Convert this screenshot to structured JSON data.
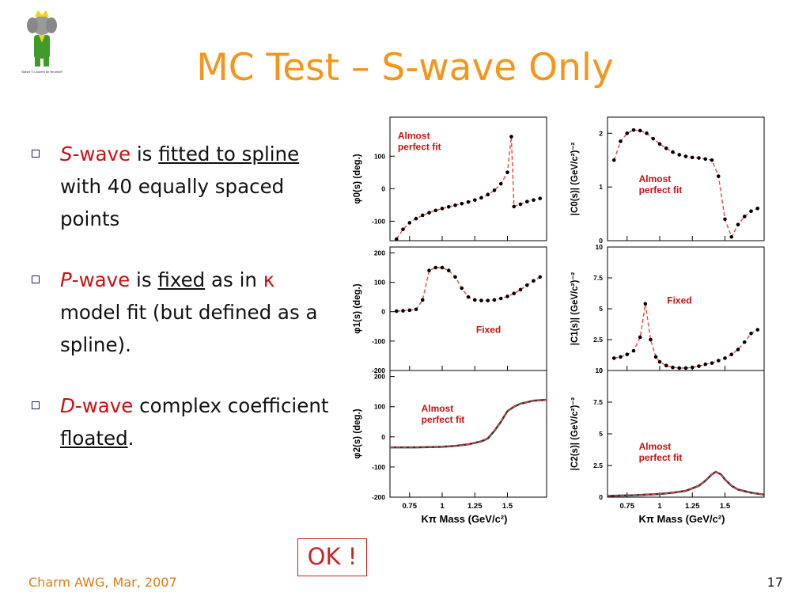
{
  "slide": {
    "title": "MC Test – S-wave Only",
    "footer_left": "Charm AWG, Mar, 2007",
    "page_number": "17",
    "ok_label": "OK !",
    "logo_icon": "babar-elephant-logo-icon",
    "logo_caption": "Babar © Laurent de Brunhoff"
  },
  "bullets": [
    {
      "parts": [
        {
          "t": "S",
          "style": "red-italic"
        },
        {
          "t": "-wave",
          "style": "red"
        },
        {
          "t": " is ",
          "style": "plain"
        },
        {
          "t": "fitted to spline",
          "style": "underline"
        },
        {
          "t": " with 40 equally spaced points",
          "style": "plain"
        }
      ]
    },
    {
      "parts": [
        {
          "t": "P",
          "style": "red-italic"
        },
        {
          "t": "-wave",
          "style": "red"
        },
        {
          "t": " is ",
          "style": "plain"
        },
        {
          "t": "fixed",
          "style": "underline"
        },
        {
          "t": " as in ",
          "style": "plain"
        },
        {
          "t": "κ",
          "style": "red"
        },
        {
          "t": " model fit (but defined as a spline).",
          "style": "plain"
        }
      ]
    },
    {
      "parts": [
        {
          "t": "D",
          "style": "red-italic"
        },
        {
          "t": "-wave",
          "style": "red"
        },
        {
          "t": " complex coefficient ",
          "style": "plain"
        },
        {
          "t": "floated",
          "style": "underline"
        },
        {
          "t": ".",
          "style": "plain"
        }
      ]
    }
  ],
  "colors": {
    "title": "#f4961c",
    "accent_red": "#cc1010",
    "fit_line": "#ee4444",
    "points": "#000000"
  },
  "chart_data": [
    {
      "type": "scatter",
      "ylabel": "φ0(s) (deg.)",
      "annotation": "Almost perfect fit",
      "xlim": [
        0.6,
        1.8
      ],
      "ylim": [
        -160,
        220
      ],
      "yticks": [
        100,
        0,
        -100
      ],
      "x": [
        0.65,
        0.7,
        0.75,
        0.8,
        0.85,
        0.9,
        0.95,
        1.0,
        1.05,
        1.1,
        1.15,
        1.2,
        1.25,
        1.3,
        1.35,
        1.4,
        1.45,
        1.5,
        1.53,
        1.55,
        1.6,
        1.65,
        1.7,
        1.75
      ],
      "y": [
        -155,
        -125,
        -105,
        -92,
        -82,
        -74,
        -67,
        -61,
        -56,
        -51,
        -46,
        -41,
        -35,
        -28,
        -18,
        -5,
        15,
        50,
        160,
        -55,
        -48,
        -40,
        -35,
        -30
      ]
    },
    {
      "type": "scatter",
      "ylabel": "|C0(s)| (GeV/c²)⁻²",
      "annotation": "Almost perfect fit",
      "xlim": [
        0.6,
        1.8
      ],
      "ylim": [
        0,
        2.3
      ],
      "yticks": [
        2,
        1,
        0
      ],
      "x": [
        0.65,
        0.7,
        0.75,
        0.8,
        0.85,
        0.9,
        0.95,
        1.0,
        1.05,
        1.1,
        1.15,
        1.2,
        1.25,
        1.3,
        1.35,
        1.4,
        1.45,
        1.5,
        1.55,
        1.6,
        1.65,
        1.7,
        1.75
      ],
      "y": [
        1.5,
        1.85,
        2.0,
        2.06,
        2.05,
        2.0,
        1.9,
        1.8,
        1.72,
        1.65,
        1.6,
        1.57,
        1.55,
        1.54,
        1.52,
        1.5,
        1.2,
        0.4,
        0.07,
        0.3,
        0.45,
        0.55,
        0.6
      ]
    },
    {
      "type": "scatter",
      "ylabel": "φ1(s) (deg.)",
      "annotation": "Fixed",
      "xlim": [
        0.6,
        1.8
      ],
      "ylim": [
        -200,
        220
      ],
      "yticks": [
        200,
        100,
        0,
        -100,
        -200
      ],
      "x": [
        0.65,
        0.7,
        0.75,
        0.8,
        0.85,
        0.9,
        0.95,
        1.0,
        1.05,
        1.1,
        1.15,
        1.2,
        1.25,
        1.3,
        1.35,
        1.4,
        1.45,
        1.5,
        1.55,
        1.6,
        1.65,
        1.7,
        1.75
      ],
      "y": [
        2,
        3,
        5,
        8,
        40,
        140,
        150,
        150,
        140,
        118,
        80,
        50,
        40,
        38,
        38,
        40,
        45,
        52,
        62,
        75,
        90,
        105,
        118
      ]
    },
    {
      "type": "scatter",
      "ylabel": "|C1(s)| (GeV/c²)⁻²",
      "annotation": "Fixed",
      "xlim": [
        0.6,
        1.8
      ],
      "ylim": [
        0,
        10
      ],
      "yticks": [
        10,
        7.5,
        5,
        2.5,
        0
      ],
      "x": [
        0.65,
        0.7,
        0.75,
        0.8,
        0.85,
        0.89,
        0.93,
        0.97,
        1.0,
        1.05,
        1.1,
        1.15,
        1.2,
        1.25,
        1.3,
        1.35,
        1.4,
        1.45,
        1.5,
        1.55,
        1.6,
        1.65,
        1.7,
        1.75
      ],
      "y": [
        1.0,
        1.1,
        1.3,
        1.6,
        2.7,
        5.4,
        2.5,
        1.1,
        0.7,
        0.4,
        0.25,
        0.2,
        0.2,
        0.25,
        0.35,
        0.5,
        0.6,
        0.8,
        1.0,
        1.3,
        1.7,
        2.3,
        3.0,
        3.3
      ]
    },
    {
      "type": "line",
      "ylabel": "φ2(s) (deg.)",
      "annotation": "Almost perfect fit",
      "xlabel": "Kπ Mass (GeV/c²)",
      "xticks": [
        0.75,
        1,
        1.25,
        1.5
      ],
      "xlim": [
        0.6,
        1.8
      ],
      "ylim": [
        -200,
        220
      ],
      "yticks": [
        200,
        100,
        0,
        -100,
        -200
      ],
      "x": [
        0.6,
        0.8,
        1.0,
        1.1,
        1.2,
        1.3,
        1.35,
        1.4,
        1.45,
        1.5,
        1.55,
        1.6,
        1.7,
        1.8
      ],
      "y": [
        -35,
        -35,
        -33,
        -30,
        -25,
        -15,
        -5,
        20,
        50,
        85,
        100,
        110,
        120,
        123
      ]
    },
    {
      "type": "line",
      "ylabel": "|C2(s)| (GeV/c²)⁻²",
      "annotation": "Almost perfect fit",
      "xlabel": "Kπ Mass (GeV/c²)",
      "xticks": [
        0.75,
        1,
        1.25,
        1.5
      ],
      "xlim": [
        0.6,
        1.8
      ],
      "ylim": [
        0,
        10
      ],
      "yticks": [
        10,
        7.5,
        5,
        2.5,
        0
      ],
      "x": [
        0.6,
        0.8,
        1.0,
        1.1,
        1.2,
        1.3,
        1.35,
        1.4,
        1.43,
        1.47,
        1.5,
        1.55,
        1.6,
        1.7,
        1.8
      ],
      "y": [
        0.1,
        0.15,
        0.25,
        0.35,
        0.5,
        0.9,
        1.3,
        1.8,
        2.0,
        1.8,
        1.4,
        0.9,
        0.6,
        0.35,
        0.2
      ]
    }
  ]
}
